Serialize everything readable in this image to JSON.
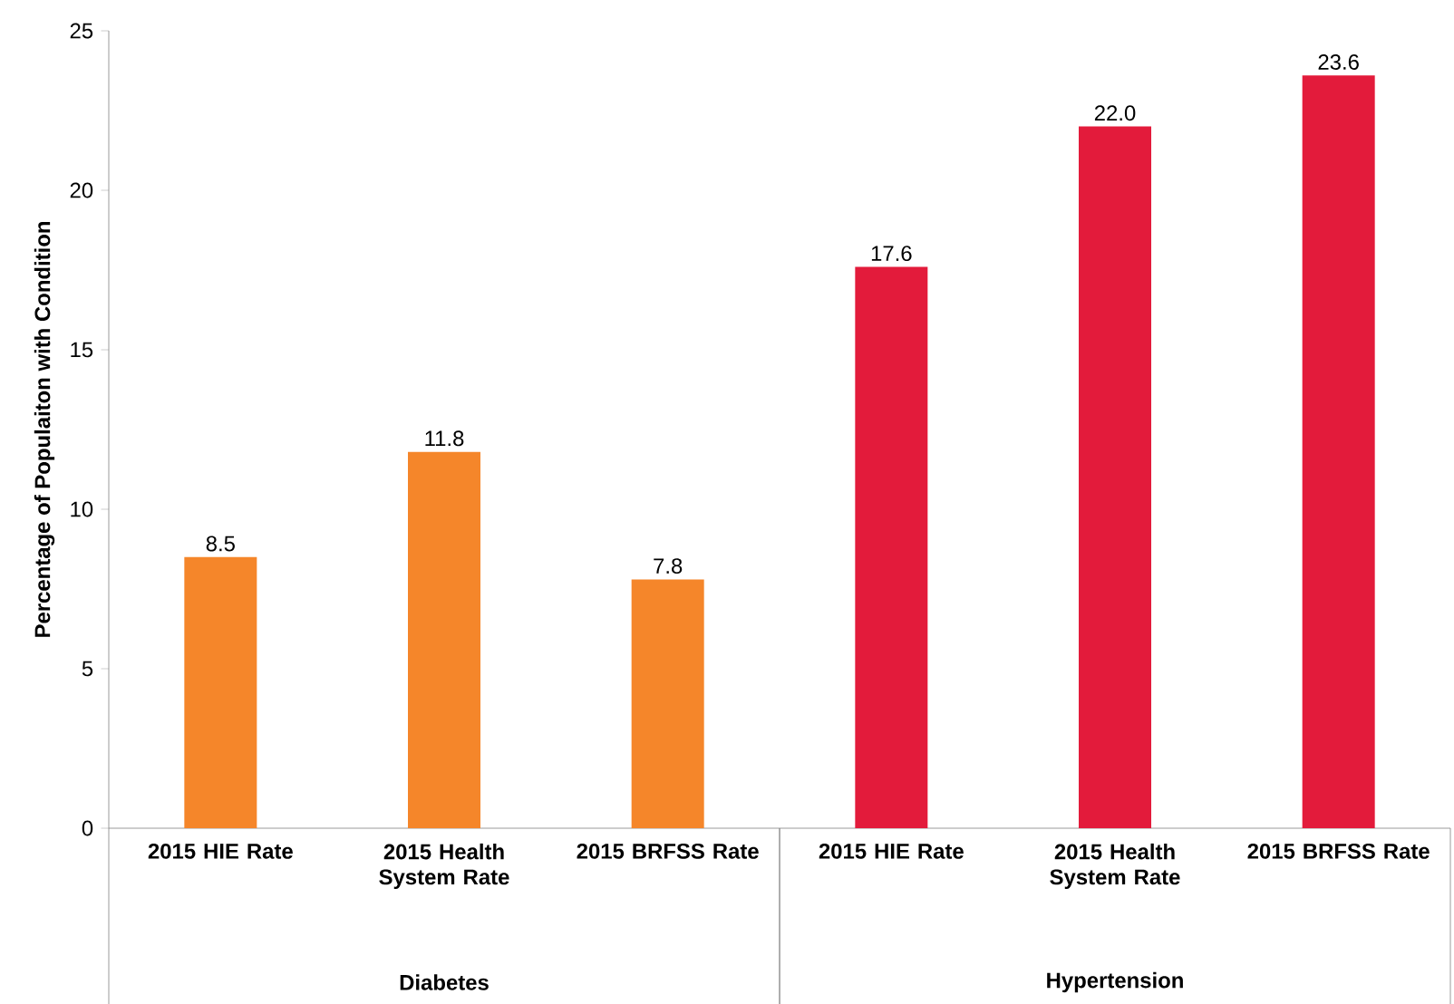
{
  "chart_data": {
    "type": "bar",
    "ylabel": "Percentage  of Populaiton with Condition",
    "categories": [
      "2015 HIE Rate",
      "2015 Health System Rate",
      "2015 BRFSS Rate",
      "2015 HIE Rate",
      "2015 Health System Rate",
      "2015 BRFSS Rate"
    ],
    "values": [
      8.5,
      11.8,
      7.8,
      17.6,
      22.0,
      23.6
    ],
    "value_labels": [
      "8.5",
      "11.8",
      "7.8",
      "17.6",
      "22.0",
      "23.6"
    ],
    "colors": [
      "#f5862a",
      "#f5862a",
      "#f5862a",
      "#e31b3b",
      "#e31b3b",
      "#e31b3b"
    ],
    "annotations": [
      "Diabetes",
      "Hypertension"
    ],
    "ylim": [
      0,
      25
    ],
    "yticks": [
      0,
      5,
      10,
      15,
      20,
      25
    ]
  }
}
